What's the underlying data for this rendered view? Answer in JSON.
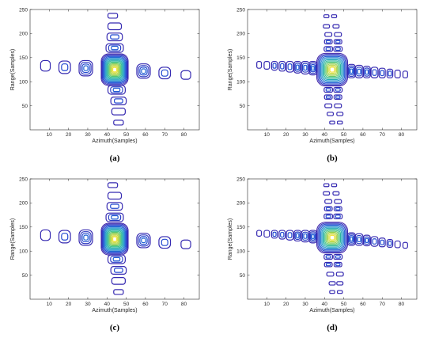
{
  "chart_data": [
    {
      "type": "contour",
      "caption": "(a)",
      "xlabel": "Azimuth(Samples)",
      "ylabel": "Range(Samples)",
      "xlim": [
        0,
        88
      ],
      "ylim": [
        0,
        250
      ],
      "xticks": [
        10,
        20,
        30,
        40,
        50,
        60,
        70,
        80
      ],
      "yticks": [
        50,
        100,
        150,
        200,
        250
      ],
      "colormap": [
        "#3b1fa8",
        "#1f4fd6",
        "#1fa0c8",
        "#35c08a",
        "#a0d040",
        "#f0e030"
      ],
      "peak": {
        "x": 44,
        "y": 125
      },
      "blobs": [
        {
          "x": 44,
          "y": 125,
          "rx": 7,
          "ry": 33,
          "levels": 16,
          "center": "peak"
        },
        {
          "x": 29,
          "y": 128,
          "rx": 3.5,
          "ry": 16,
          "levels": 4
        },
        {
          "x": 18,
          "y": 130,
          "rx": 3,
          "ry": 13,
          "levels": 2
        },
        {
          "x": 8,
          "y": 133,
          "rx": 2.5,
          "ry": 11,
          "levels": 1
        },
        {
          "x": 59,
          "y": 122,
          "rx": 3.5,
          "ry": 15,
          "levels": 4
        },
        {
          "x": 70,
          "y": 118,
          "rx": 3,
          "ry": 12,
          "levels": 2
        },
        {
          "x": 81,
          "y": 114,
          "rx": 2.5,
          "ry": 9,
          "levels": 1
        },
        {
          "x": 44,
          "y": 170,
          "rx": 4.5,
          "ry": 9,
          "levels": 3
        },
        {
          "x": 44,
          "y": 193,
          "rx": 4,
          "ry": 8,
          "levels": 2
        },
        {
          "x": 44,
          "y": 215,
          "rx": 3.5,
          "ry": 7,
          "levels": 1
        },
        {
          "x": 43,
          "y": 237,
          "rx": 2.5,
          "ry": 5,
          "levels": 1
        },
        {
          "x": 45,
          "y": 83,
          "rx": 4.5,
          "ry": 9,
          "levels": 3
        },
        {
          "x": 46,
          "y": 60,
          "rx": 4,
          "ry": 8,
          "levels": 2
        },
        {
          "x": 46,
          "y": 38,
          "rx": 3.5,
          "ry": 7,
          "levels": 1
        },
        {
          "x": 46,
          "y": 15,
          "rx": 2.5,
          "ry": 5,
          "levels": 1
        }
      ]
    },
    {
      "type": "contour",
      "caption": "(b)",
      "xlabel": "Azimuth(Samples)",
      "ylabel": "Range(Samples)",
      "xlim": [
        0,
        88
      ],
      "ylim": [
        0,
        250
      ],
      "xticks": [
        10,
        20,
        30,
        40,
        50,
        60,
        70,
        80
      ],
      "yticks": [
        50,
        100,
        150,
        200,
        250
      ],
      "colormap": [
        "#3b1fa8",
        "#1f4fd6",
        "#1fa0c8",
        "#35c08a",
        "#a0d040",
        "#f0e030"
      ],
      "peak": {
        "x": 44,
        "y": 125
      },
      "blobs": [
        {
          "x": 44,
          "y": 125,
          "rx": 8,
          "ry": 34,
          "levels": 14,
          "center": "peak"
        },
        {
          "x": 34,
          "y": 128,
          "rx": 2,
          "ry": 14,
          "levels": 4
        },
        {
          "x": 30,
          "y": 129,
          "rx": 2,
          "ry": 13,
          "levels": 3
        },
        {
          "x": 26,
          "y": 130,
          "rx": 1.8,
          "ry": 12,
          "levels": 3
        },
        {
          "x": 22,
          "y": 131,
          "rx": 1.8,
          "ry": 11,
          "levels": 2
        },
        {
          "x": 18,
          "y": 132,
          "rx": 1.6,
          "ry": 10,
          "levels": 2
        },
        {
          "x": 14,
          "y": 133,
          "rx": 1.5,
          "ry": 9,
          "levels": 2
        },
        {
          "x": 10,
          "y": 134,
          "rx": 1.4,
          "ry": 8,
          "levels": 1
        },
        {
          "x": 6,
          "y": 135,
          "rx": 1.2,
          "ry": 7,
          "levels": 1
        },
        {
          "x": 54,
          "y": 122,
          "rx": 2,
          "ry": 14,
          "levels": 4
        },
        {
          "x": 58,
          "y": 121,
          "rx": 2,
          "ry": 13,
          "levels": 3
        },
        {
          "x": 62,
          "y": 120,
          "rx": 1.8,
          "ry": 12,
          "levels": 3
        },
        {
          "x": 66,
          "y": 119,
          "rx": 1.8,
          "ry": 11,
          "levels": 2
        },
        {
          "x": 70,
          "y": 118,
          "rx": 1.6,
          "ry": 10,
          "levels": 2
        },
        {
          "x": 74,
          "y": 117,
          "rx": 1.5,
          "ry": 9,
          "levels": 2
        },
        {
          "x": 78,
          "y": 116,
          "rx": 1.4,
          "ry": 8,
          "levels": 1
        },
        {
          "x": 82,
          "y": 115,
          "rx": 1.2,
          "ry": 7,
          "levels": 1
        },
        {
          "x": 42,
          "y": 168,
          "rx": 2.2,
          "ry": 5,
          "levels": 2
        },
        {
          "x": 47,
          "y": 168,
          "rx": 2.2,
          "ry": 5,
          "levels": 2
        },
        {
          "x": 42,
          "y": 183,
          "rx": 2,
          "ry": 4.5,
          "levels": 2
        },
        {
          "x": 47,
          "y": 183,
          "rx": 2,
          "ry": 4.5,
          "levels": 2
        },
        {
          "x": 42,
          "y": 198,
          "rx": 1.8,
          "ry": 4,
          "levels": 1
        },
        {
          "x": 47,
          "y": 198,
          "rx": 1.8,
          "ry": 4,
          "levels": 1
        },
        {
          "x": 41,
          "y": 215,
          "rx": 1.6,
          "ry": 3.5,
          "levels": 1
        },
        {
          "x": 46,
          "y": 215,
          "rx": 1.6,
          "ry": 3.5,
          "levels": 1
        },
        {
          "x": 41,
          "y": 236,
          "rx": 1.3,
          "ry": 3,
          "levels": 1
        },
        {
          "x": 45,
          "y": 236,
          "rx": 1.3,
          "ry": 3,
          "levels": 1
        },
        {
          "x": 42,
          "y": 83,
          "rx": 2.2,
          "ry": 5,
          "levels": 2
        },
        {
          "x": 47,
          "y": 83,
          "rx": 2.2,
          "ry": 5,
          "levels": 2
        },
        {
          "x": 42,
          "y": 68,
          "rx": 2,
          "ry": 4.5,
          "levels": 2
        },
        {
          "x": 47,
          "y": 68,
          "rx": 2,
          "ry": 4.5,
          "levels": 2
        },
        {
          "x": 42,
          "y": 50,
          "rx": 1.8,
          "ry": 4,
          "levels": 1
        },
        {
          "x": 47,
          "y": 50,
          "rx": 1.8,
          "ry": 4,
          "levels": 1
        },
        {
          "x": 43,
          "y": 33,
          "rx": 1.6,
          "ry": 3.5,
          "levels": 1
        },
        {
          "x": 48,
          "y": 33,
          "rx": 1.6,
          "ry": 3.5,
          "levels": 1
        },
        {
          "x": 44,
          "y": 15,
          "rx": 1.3,
          "ry": 3,
          "levels": 1
        },
        {
          "x": 48,
          "y": 15,
          "rx": 1.3,
          "ry": 3,
          "levels": 1
        }
      ]
    },
    {
      "type": "contour",
      "caption": "(c)",
      "xlabel": "Azimuth(Samples)",
      "ylabel": "Range(Samples)",
      "xlim": [
        0,
        88
      ],
      "ylim": [
        0,
        250
      ],
      "xticks": [
        10,
        20,
        30,
        40,
        50,
        60,
        70,
        80
      ],
      "yticks": [
        50,
        100,
        150,
        200,
        250
      ],
      "colormap": [
        "#3b1fa8",
        "#1f4fd6",
        "#1fa0c8",
        "#35c08a",
        "#a0d040",
        "#f0e030"
      ],
      "peak": {
        "x": 44,
        "y": 125
      },
      "blobs": [
        {
          "x": 44,
          "y": 125,
          "rx": 7,
          "ry": 33,
          "levels": 16,
          "center": "peak"
        },
        {
          "x": 29,
          "y": 128,
          "rx": 3.5,
          "ry": 16,
          "levels": 4
        },
        {
          "x": 18,
          "y": 130,
          "rx": 3,
          "ry": 13,
          "levels": 2
        },
        {
          "x": 8,
          "y": 133,
          "rx": 2.5,
          "ry": 11,
          "levels": 1
        },
        {
          "x": 59,
          "y": 122,
          "rx": 3.5,
          "ry": 15,
          "levels": 4
        },
        {
          "x": 70,
          "y": 118,
          "rx": 3,
          "ry": 12,
          "levels": 2
        },
        {
          "x": 81,
          "y": 114,
          "rx": 2.5,
          "ry": 9,
          "levels": 1
        },
        {
          "x": 44,
          "y": 170,
          "rx": 4.5,
          "ry": 9,
          "levels": 3
        },
        {
          "x": 44,
          "y": 193,
          "rx": 4,
          "ry": 8,
          "levels": 2
        },
        {
          "x": 44,
          "y": 215,
          "rx": 3.5,
          "ry": 7,
          "levels": 1
        },
        {
          "x": 43,
          "y": 237,
          "rx": 2.5,
          "ry": 5,
          "levels": 1
        },
        {
          "x": 45,
          "y": 83,
          "rx": 4.5,
          "ry": 9,
          "levels": 3
        },
        {
          "x": 46,
          "y": 60,
          "rx": 4,
          "ry": 8,
          "levels": 2
        },
        {
          "x": 46,
          "y": 38,
          "rx": 3.5,
          "ry": 7,
          "levels": 1
        },
        {
          "x": 46,
          "y": 15,
          "rx": 2.5,
          "ry": 5,
          "levels": 1
        }
      ]
    },
    {
      "type": "contour",
      "caption": "(d)",
      "xlabel": "Azimuth(Samples)",
      "ylabel": "Range(Samples)",
      "xlim": [
        0,
        88
      ],
      "ylim": [
        0,
        250
      ],
      "xticks": [
        10,
        20,
        30,
        40,
        50,
        60,
        70,
        80
      ],
      "yticks": [
        50,
        100,
        150,
        200,
        250
      ],
      "colormap": [
        "#3b1fa8",
        "#1f4fd6",
        "#1fa0c8",
        "#35c08a",
        "#a0d040",
        "#f0e030"
      ],
      "peak": {
        "x": 44,
        "y": 128
      },
      "blobs": [
        {
          "x": 44,
          "y": 128,
          "rx": 8,
          "ry": 32,
          "levels": 14,
          "center": "peak"
        },
        {
          "x": 34,
          "y": 130,
          "rx": 2,
          "ry": 13,
          "levels": 4
        },
        {
          "x": 30,
          "y": 131,
          "rx": 2,
          "ry": 12,
          "levels": 3
        },
        {
          "x": 26,
          "y": 132,
          "rx": 1.8,
          "ry": 11,
          "levels": 3
        },
        {
          "x": 22,
          "y": 133,
          "rx": 1.8,
          "ry": 10,
          "levels": 2
        },
        {
          "x": 18,
          "y": 134,
          "rx": 1.6,
          "ry": 9,
          "levels": 2
        },
        {
          "x": 14,
          "y": 135,
          "rx": 1.5,
          "ry": 8,
          "levels": 2
        },
        {
          "x": 10,
          "y": 136,
          "rx": 1.4,
          "ry": 7,
          "levels": 1
        },
        {
          "x": 6,
          "y": 137,
          "rx": 1.2,
          "ry": 6,
          "levels": 1
        },
        {
          "x": 54,
          "y": 125,
          "rx": 2,
          "ry": 13,
          "levels": 4
        },
        {
          "x": 58,
          "y": 124,
          "rx": 2,
          "ry": 12,
          "levels": 3
        },
        {
          "x": 62,
          "y": 122,
          "rx": 1.8,
          "ry": 11,
          "levels": 3
        },
        {
          "x": 66,
          "y": 120,
          "rx": 1.8,
          "ry": 10,
          "levels": 2
        },
        {
          "x": 70,
          "y": 118,
          "rx": 1.6,
          "ry": 9,
          "levels": 2
        },
        {
          "x": 74,
          "y": 116,
          "rx": 1.5,
          "ry": 8,
          "levels": 2
        },
        {
          "x": 78,
          "y": 114,
          "rx": 1.4,
          "ry": 7,
          "levels": 1
        },
        {
          "x": 82,
          "y": 112,
          "rx": 1.2,
          "ry": 6,
          "levels": 1
        },
        {
          "x": 42,
          "y": 172,
          "rx": 2.2,
          "ry": 5,
          "levels": 2
        },
        {
          "x": 47,
          "y": 172,
          "rx": 2.2,
          "ry": 5,
          "levels": 2
        },
        {
          "x": 42,
          "y": 188,
          "rx": 2,
          "ry": 4.5,
          "levels": 2
        },
        {
          "x": 47,
          "y": 188,
          "rx": 2,
          "ry": 4.5,
          "levels": 2
        },
        {
          "x": 42,
          "y": 203,
          "rx": 1.8,
          "ry": 4,
          "levels": 1
        },
        {
          "x": 47,
          "y": 203,
          "rx": 1.8,
          "ry": 4,
          "levels": 1
        },
        {
          "x": 41,
          "y": 220,
          "rx": 1.6,
          "ry": 3.5,
          "levels": 1
        },
        {
          "x": 46,
          "y": 220,
          "rx": 1.6,
          "ry": 3.5,
          "levels": 1
        },
        {
          "x": 41,
          "y": 237,
          "rx": 1.3,
          "ry": 3,
          "levels": 1
        },
        {
          "x": 45,
          "y": 237,
          "rx": 1.3,
          "ry": 3,
          "levels": 1
        },
        {
          "x": 42,
          "y": 88,
          "rx": 2.2,
          "ry": 5,
          "levels": 2
        },
        {
          "x": 47,
          "y": 88,
          "rx": 2.2,
          "ry": 5,
          "levels": 2
        },
        {
          "x": 42,
          "y": 72,
          "rx": 2,
          "ry": 4.5,
          "levels": 2
        },
        {
          "x": 47,
          "y": 72,
          "rx": 2,
          "ry": 4.5,
          "levels": 2
        },
        {
          "x": 43,
          "y": 52,
          "rx": 1.8,
          "ry": 4,
          "levels": 1
        },
        {
          "x": 48,
          "y": 52,
          "rx": 1.8,
          "ry": 4,
          "levels": 1
        },
        {
          "x": 44,
          "y": 33,
          "rx": 1.6,
          "ry": 3.5,
          "levels": 1
        },
        {
          "x": 48,
          "y": 33,
          "rx": 1.6,
          "ry": 3.5,
          "levels": 1
        },
        {
          "x": 44,
          "y": 15,
          "rx": 1.3,
          "ry": 3,
          "levels": 1
        },
        {
          "x": 48,
          "y": 15,
          "rx": 1.3,
          "ry": 3,
          "levels": 1
        }
      ]
    }
  ]
}
